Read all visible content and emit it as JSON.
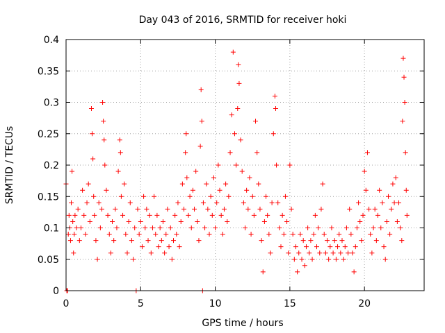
{
  "chart_data": {
    "type": "scatter",
    "title": "Day 043 of 2016, SRMTID for receiver hoki",
    "xlabel": "GPS time / hours",
    "ylabel": "SRMTID / TECUs",
    "xlim": [
      0,
      24
    ],
    "ylim": [
      0,
      0.4
    ],
    "xticks": [
      0,
      5,
      10,
      15,
      20
    ],
    "xtick_labels": [
      "0",
      "5",
      "10",
      "15",
      "20"
    ],
    "yticks": [
      0,
      0.05,
      0.1,
      0.15,
      0.2,
      0.25,
      0.3,
      0.35,
      0.4
    ],
    "ytick_labels": [
      "0",
      "0.05",
      "0.1",
      "0.15",
      "0.2",
      "0.25",
      "0.3",
      "0.35",
      "0.4"
    ],
    "grid": true,
    "marker": "+",
    "color": "#ff0000",
    "series": [
      {
        "name": "SRMTID",
        "points": [
          [
            0.0,
            0.17
          ],
          [
            0.05,
            0.0
          ],
          [
            0.1,
            0.0
          ],
          [
            0.15,
            0.09
          ],
          [
            0.2,
            0.12
          ],
          [
            0.25,
            0.1
          ],
          [
            0.3,
            0.08
          ],
          [
            0.35,
            0.14
          ],
          [
            0.4,
            0.19
          ],
          [
            0.45,
            0.11
          ],
          [
            0.5,
            0.06
          ],
          [
            0.55,
            0.09
          ],
          [
            0.6,
            0.12
          ],
          [
            0.7,
            0.1
          ],
          [
            0.8,
            0.13
          ],
          [
            0.9,
            0.08
          ],
          [
            1.0,
            0.1
          ],
          [
            1.1,
            0.16
          ],
          [
            1.2,
            0.12
          ],
          [
            1.3,
            0.09
          ],
          [
            1.4,
            0.14
          ],
          [
            1.5,
            0.17
          ],
          [
            1.6,
            0.11
          ],
          [
            1.7,
            0.29
          ],
          [
            1.75,
            0.25
          ],
          [
            1.8,
            0.21
          ],
          [
            1.85,
            0.15
          ],
          [
            1.9,
            0.12
          ],
          [
            2.0,
            0.08
          ],
          [
            2.1,
            0.05
          ],
          [
            2.2,
            0.14
          ],
          [
            2.3,
            0.1
          ],
          [
            2.4,
            0.13
          ],
          [
            2.45,
            0.3
          ],
          [
            2.5,
            0.27
          ],
          [
            2.55,
            0.24
          ],
          [
            2.6,
            0.2
          ],
          [
            2.7,
            0.16
          ],
          [
            2.8,
            0.12
          ],
          [
            2.9,
            0.09
          ],
          [
            3.0,
            0.06
          ],
          [
            3.1,
            0.11
          ],
          [
            3.2,
            0.08
          ],
          [
            3.3,
            0.13
          ],
          [
            3.4,
            0.1
          ],
          [
            3.5,
            0.19
          ],
          [
            3.6,
            0.24
          ],
          [
            3.65,
            0.22
          ],
          [
            3.7,
            0.15
          ],
          [
            3.8,
            0.12
          ],
          [
            3.9,
            0.17
          ],
          [
            4.0,
            0.09
          ],
          [
            4.1,
            0.06
          ],
          [
            4.2,
            0.11
          ],
          [
            4.3,
            0.14
          ],
          [
            4.4,
            0.08
          ],
          [
            4.5,
            0.05
          ],
          [
            4.6,
            0.1
          ],
          [
            4.7,
            0.0
          ],
          [
            4.8,
            0.13
          ],
          [
            4.9,
            0.09
          ],
          [
            5.0,
            0.11
          ],
          [
            5.1,
            0.07
          ],
          [
            5.2,
            0.15
          ],
          [
            5.3,
            0.1
          ],
          [
            5.4,
            0.13
          ],
          [
            5.5,
            0.08
          ],
          [
            5.6,
            0.12
          ],
          [
            5.7,
            0.06
          ],
          [
            5.8,
            0.1
          ],
          [
            5.9,
            0.15
          ],
          [
            6.0,
            0.09
          ],
          [
            6.1,
            0.12
          ],
          [
            6.2,
            0.07
          ],
          [
            6.3,
            0.1
          ],
          [
            6.4,
            0.08
          ],
          [
            6.5,
            0.11
          ],
          [
            6.6,
            0.06
          ],
          [
            6.7,
            0.09
          ],
          [
            6.8,
            0.13
          ],
          [
            6.9,
            0.07
          ],
          [
            7.0,
            0.1
          ],
          [
            7.1,
            0.05
          ],
          [
            7.2,
            0.08
          ],
          [
            7.3,
            0.12
          ],
          [
            7.4,
            0.09
          ],
          [
            7.5,
            0.14
          ],
          [
            7.6,
            0.07
          ],
          [
            7.7,
            0.11
          ],
          [
            7.8,
            0.17
          ],
          [
            7.9,
            0.13
          ],
          [
            8.0,
            0.22
          ],
          [
            8.05,
            0.25
          ],
          [
            8.1,
            0.18
          ],
          [
            8.2,
            0.12
          ],
          [
            8.3,
            0.15
          ],
          [
            8.4,
            0.1
          ],
          [
            8.5,
            0.16
          ],
          [
            8.6,
            0.13
          ],
          [
            8.7,
            0.19
          ],
          [
            8.8,
            0.11
          ],
          [
            8.9,
            0.08
          ],
          [
            9.0,
            0.23
          ],
          [
            9.05,
            0.32
          ],
          [
            9.1,
            0.27
          ],
          [
            9.15,
            0.0
          ],
          [
            9.2,
            0.14
          ],
          [
            9.3,
            0.1
          ],
          [
            9.4,
            0.17
          ],
          [
            9.5,
            0.13
          ],
          [
            9.6,
            0.09
          ],
          [
            9.7,
            0.15
          ],
          [
            9.8,
            0.12
          ],
          [
            9.9,
            0.18
          ],
          [
            10.0,
            0.1
          ],
          [
            10.1,
            0.14
          ],
          [
            10.2,
            0.2
          ],
          [
            10.3,
            0.16
          ],
          [
            10.4,
            0.12
          ],
          [
            10.5,
            0.09
          ],
          [
            10.6,
            0.13
          ],
          [
            10.7,
            0.17
          ],
          [
            10.8,
            0.11
          ],
          [
            10.9,
            0.15
          ],
          [
            11.0,
            0.22
          ],
          [
            11.1,
            0.28
          ],
          [
            11.2,
            0.38
          ],
          [
            11.3,
            0.25
          ],
          [
            11.4,
            0.2
          ],
          [
            11.5,
            0.29
          ],
          [
            11.55,
            0.36
          ],
          [
            11.6,
            0.33
          ],
          [
            11.7,
            0.24
          ],
          [
            11.8,
            0.19
          ],
          [
            11.9,
            0.14
          ],
          [
            12.0,
            0.1
          ],
          [
            12.1,
            0.16
          ],
          [
            12.2,
            0.13
          ],
          [
            12.3,
            0.18
          ],
          [
            12.4,
            0.09
          ],
          [
            12.5,
            0.15
          ],
          [
            12.6,
            0.12
          ],
          [
            12.7,
            0.27
          ],
          [
            12.8,
            0.22
          ],
          [
            12.9,
            0.17
          ],
          [
            13.0,
            0.13
          ],
          [
            13.1,
            0.08
          ],
          [
            13.2,
            0.03
          ],
          [
            13.3,
            0.11
          ],
          [
            13.4,
            0.15
          ],
          [
            13.5,
            0.12
          ],
          [
            13.6,
            0.09
          ],
          [
            13.7,
            0.06
          ],
          [
            13.8,
            0.14
          ],
          [
            13.9,
            0.25
          ],
          [
            14.0,
            0.31
          ],
          [
            14.05,
            0.29
          ],
          [
            14.1,
            0.2
          ],
          [
            14.2,
            0.14
          ],
          [
            14.3,
            0.1
          ],
          [
            14.4,
            0.07
          ],
          [
            14.5,
            0.12
          ],
          [
            14.6,
            0.09
          ],
          [
            14.7,
            0.15
          ],
          [
            14.8,
            0.11
          ],
          [
            14.9,
            0.06
          ],
          [
            15.0,
            0.2
          ],
          [
            15.1,
            0.13
          ],
          [
            15.2,
            0.09
          ],
          [
            15.3,
            0.05
          ],
          [
            15.4,
            0.07
          ],
          [
            15.5,
            0.03
          ],
          [
            15.6,
            0.06
          ],
          [
            15.7,
            0.09
          ],
          [
            15.8,
            0.05
          ],
          [
            15.9,
            0.08
          ],
          [
            16.0,
            0.04
          ],
          [
            16.1,
            0.07
          ],
          [
            16.2,
            0.1
          ],
          [
            16.3,
            0.06
          ],
          [
            16.4,
            0.08
          ],
          [
            16.5,
            0.05
          ],
          [
            16.6,
            0.09
          ],
          [
            16.7,
            0.12
          ],
          [
            16.8,
            0.07
          ],
          [
            16.9,
            0.1
          ],
          [
            17.0,
            0.06
          ],
          [
            17.1,
            0.13
          ],
          [
            17.2,
            0.17
          ],
          [
            17.3,
            0.09
          ],
          [
            17.4,
            0.06
          ],
          [
            17.5,
            0.08
          ],
          [
            17.6,
            0.05
          ],
          [
            17.7,
            0.07
          ],
          [
            17.8,
            0.1
          ],
          [
            17.9,
            0.06
          ],
          [
            18.0,
            0.08
          ],
          [
            18.1,
            0.05
          ],
          [
            18.2,
            0.07
          ],
          [
            18.3,
            0.09
          ],
          [
            18.4,
            0.06
          ],
          [
            18.5,
            0.08
          ],
          [
            18.6,
            0.05
          ],
          [
            18.7,
            0.07
          ],
          [
            18.8,
            0.1
          ],
          [
            18.9,
            0.06
          ],
          [
            19.0,
            0.13
          ],
          [
            19.1,
            0.09
          ],
          [
            19.2,
            0.06
          ],
          [
            19.3,
            0.03
          ],
          [
            19.4,
            0.07
          ],
          [
            19.5,
            0.1
          ],
          [
            19.6,
            0.14
          ],
          [
            19.7,
            0.11
          ],
          [
            19.8,
            0.08
          ],
          [
            19.9,
            0.12
          ],
          [
            20.0,
            0.19
          ],
          [
            20.1,
            0.16
          ],
          [
            20.2,
            0.22
          ],
          [
            20.3,
            0.13
          ],
          [
            20.4,
            0.09
          ],
          [
            20.5,
            0.06
          ],
          [
            20.6,
            0.1
          ],
          [
            20.7,
            0.13
          ],
          [
            20.8,
            0.08
          ],
          [
            20.9,
            0.12
          ],
          [
            21.0,
            0.16
          ],
          [
            21.1,
            0.1
          ],
          [
            21.2,
            0.14
          ],
          [
            21.3,
            0.07
          ],
          [
            21.4,
            0.05
          ],
          [
            21.5,
            0.11
          ],
          [
            21.6,
            0.15
          ],
          [
            21.7,
            0.09
          ],
          [
            21.8,
            0.13
          ],
          [
            21.9,
            0.17
          ],
          [
            22.0,
            0.14
          ],
          [
            22.1,
            0.18
          ],
          [
            22.2,
            0.11
          ],
          [
            22.3,
            0.14
          ],
          [
            22.4,
            0.1
          ],
          [
            22.5,
            0.08
          ],
          [
            22.55,
            0.27
          ],
          [
            22.6,
            0.37
          ],
          [
            22.65,
            0.34
          ],
          [
            22.7,
            0.3
          ],
          [
            22.75,
            0.22
          ],
          [
            22.8,
            0.16
          ],
          [
            22.85,
            0.12
          ]
        ]
      }
    ]
  }
}
